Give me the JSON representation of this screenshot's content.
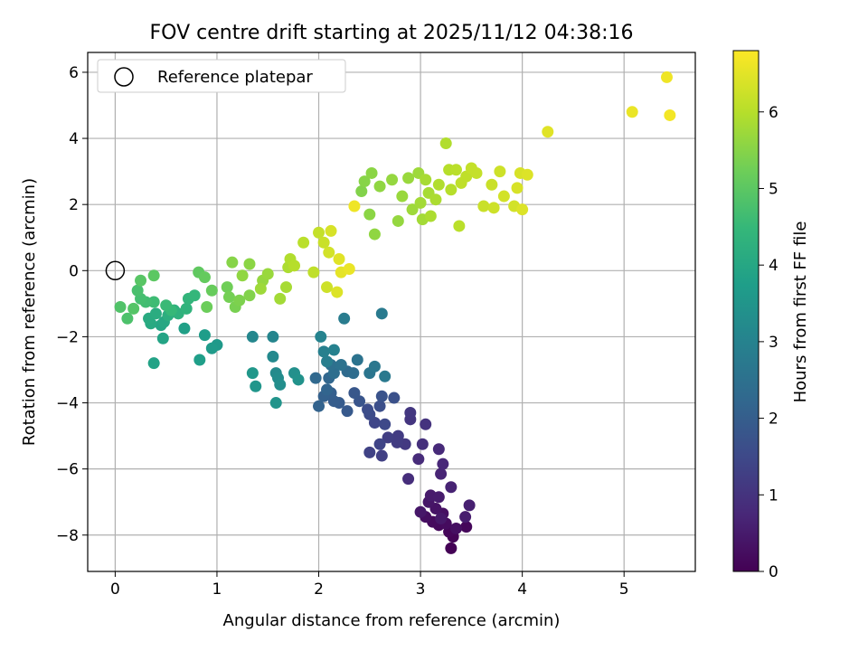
{
  "chart_data": {
    "type": "scatter",
    "title": "FOV centre drift starting at 2025/11/12 04:38:16",
    "xlabel": "Angular distance from reference (arcmin)",
    "ylabel": "Rotation from reference (arcmin)",
    "xlim": [
      -0.27,
      5.7
    ],
    "ylim": [
      -9.1,
      6.6
    ],
    "x_ticks": [
      0,
      1,
      2,
      3,
      4,
      5
    ],
    "y_ticks": [
      -8,
      -6,
      -4,
      -2,
      0,
      2,
      4,
      6
    ],
    "grid": true,
    "legend": {
      "placement": "top-left",
      "entries": [
        "Reference platepar"
      ]
    },
    "reference_point": {
      "x": 0,
      "y": 0
    },
    "colorbar": {
      "label": "Hours from first FF file",
      "range": [
        0,
        6.8
      ],
      "ticks": [
        0,
        1,
        2,
        3,
        4,
        5,
        6
      ],
      "colormap": "viridis",
      "stops": [
        "#440154",
        "#482878",
        "#3e4989",
        "#31688e",
        "#26828e",
        "#1f9e89",
        "#35b779",
        "#6ece58",
        "#b5de2b",
        "#fde725"
      ]
    },
    "points": [
      [
        3.3,
        -8.4,
        0.02
      ],
      [
        3.32,
        -8.05,
        0.05
      ],
      [
        3.28,
        -7.9,
        0.1
      ],
      [
        3.45,
        -7.75,
        0.12
      ],
      [
        3.18,
        -7.7,
        0.15
      ],
      [
        3.12,
        -7.6,
        0.18
      ],
      [
        3.25,
        -7.65,
        0.2
      ],
      [
        3.05,
        -7.45,
        0.25
      ],
      [
        3.35,
        -7.8,
        0.28
      ],
      [
        3.22,
        -7.35,
        0.3
      ],
      [
        3.15,
        -7.2,
        0.35
      ],
      [
        3.08,
        -7.0,
        0.4
      ],
      [
        3.0,
        -7.3,
        0.42
      ],
      [
        3.2,
        -7.5,
        0.45
      ],
      [
        3.1,
        -6.8,
        0.5
      ],
      [
        3.18,
        -6.85,
        0.52
      ],
      [
        3.44,
        -7.45,
        0.55
      ],
      [
        3.48,
        -7.1,
        0.6
      ],
      [
        3.3,
        -6.55,
        0.65
      ],
      [
        3.2,
        -6.15,
        0.7
      ],
      [
        3.22,
        -5.85,
        0.75
      ],
      [
        3.18,
        -5.4,
        0.8
      ],
      [
        2.98,
        -5.7,
        0.85
      ],
      [
        2.88,
        -6.3,
        0.9
      ],
      [
        3.02,
        -5.25,
        0.95
      ],
      [
        3.05,
        -4.65,
        1.0
      ],
      [
        2.9,
        -4.5,
        1.05
      ],
      [
        2.9,
        -4.3,
        1.1
      ],
      [
        2.85,
        -5.25,
        1.15
      ],
      [
        2.78,
        -5.0,
        1.2
      ],
      [
        2.77,
        -5.2,
        1.22
      ],
      [
        2.68,
        -5.05,
        1.25
      ],
      [
        2.62,
        -5.6,
        1.3
      ],
      [
        2.5,
        -5.5,
        1.35
      ],
      [
        2.6,
        -5.25,
        1.4
      ],
      [
        2.55,
        -4.6,
        1.45
      ],
      [
        2.65,
        -4.65,
        1.5
      ],
      [
        2.5,
        -4.35,
        1.55
      ],
      [
        2.48,
        -4.2,
        1.6
      ],
      [
        2.6,
        -4.1,
        1.65
      ],
      [
        2.74,
        -3.85,
        1.7
      ],
      [
        2.62,
        -3.8,
        1.75
      ],
      [
        2.4,
        -3.95,
        1.8
      ],
      [
        2.35,
        -3.7,
        1.85
      ],
      [
        2.28,
        -4.25,
        1.9
      ],
      [
        2.2,
        -4.0,
        1.95
      ],
      [
        2.15,
        -3.95,
        2.0
      ],
      [
        2.12,
        -3.7,
        2.05
      ],
      [
        2.05,
        -3.8,
        2.1
      ],
      [
        2.0,
        -4.1,
        2.15
      ],
      [
        2.08,
        -3.6,
        2.2
      ],
      [
        2.1,
        -3.25,
        2.25
      ],
      [
        1.97,
        -3.25,
        2.3
      ],
      [
        2.28,
        -3.05,
        2.35
      ],
      [
        2.34,
        -3.1,
        2.4
      ],
      [
        2.15,
        -3.1,
        2.45
      ],
      [
        2.12,
        -2.85,
        2.5
      ],
      [
        2.22,
        -2.85,
        2.55
      ],
      [
        2.38,
        -2.7,
        2.6
      ],
      [
        2.5,
        -3.1,
        2.65
      ],
      [
        2.55,
        -2.9,
        2.7
      ],
      [
        2.65,
        -3.2,
        2.75
      ],
      [
        2.62,
        -1.3,
        2.8
      ],
      [
        2.25,
        -1.45,
        2.85
      ],
      [
        2.08,
        -2.75,
        2.9
      ],
      [
        2.05,
        -2.45,
        2.95
      ],
      [
        2.15,
        -2.4,
        3.0
      ],
      [
        2.02,
        -2.0,
        3.05
      ],
      [
        1.55,
        -2.0,
        3.1
      ],
      [
        1.35,
        -2.0,
        3.15
      ],
      [
        1.55,
        -2.6,
        3.2
      ],
      [
        1.58,
        -3.1,
        3.25
      ],
      [
        1.6,
        -3.25,
        3.3
      ],
      [
        1.62,
        -3.45,
        3.35
      ],
      [
        1.76,
        -3.1,
        3.4
      ],
      [
        1.8,
        -3.3,
        3.45
      ],
      [
        1.58,
        -4.0,
        3.5
      ],
      [
        1.38,
        -3.5,
        3.55
      ],
      [
        1.35,
        -3.1,
        3.6
      ],
      [
        1.0,
        -2.25,
        3.65
      ],
      [
        0.95,
        -2.35,
        3.7
      ],
      [
        0.88,
        -1.95,
        3.75
      ],
      [
        0.83,
        -2.7,
        3.8
      ],
      [
        0.68,
        -1.75,
        3.85
      ],
      [
        0.38,
        -2.8,
        3.9
      ],
      [
        0.47,
        -2.05,
        3.95
      ],
      [
        0.45,
        -1.65,
        4.0
      ],
      [
        0.48,
        -1.55,
        4.05
      ],
      [
        0.35,
        -1.6,
        4.1
      ],
      [
        0.33,
        -1.45,
        4.15
      ],
      [
        0.4,
        -1.3,
        4.2
      ],
      [
        0.52,
        -1.35,
        4.25
      ],
      [
        0.58,
        -1.2,
        4.3
      ],
      [
        0.62,
        -1.3,
        4.35
      ],
      [
        0.7,
        -1.15,
        4.4
      ],
      [
        0.72,
        -0.85,
        4.45
      ],
      [
        0.78,
        -0.75,
        4.5
      ],
      [
        0.55,
        -1.2,
        4.55
      ],
      [
        0.5,
        -1.05,
        4.6
      ],
      [
        0.38,
        -0.95,
        4.65
      ],
      [
        0.3,
        -0.95,
        4.7
      ],
      [
        0.25,
        -0.85,
        4.75
      ],
      [
        0.22,
        -0.6,
        4.8
      ],
      [
        0.12,
        -1.45,
        4.85
      ],
      [
        0.05,
        -1.1,
        4.9
      ],
      [
        0.18,
        -1.15,
        4.95
      ],
      [
        0.25,
        -0.3,
        5.0
      ],
      [
        0.38,
        -0.15,
        5.05
      ],
      [
        0.82,
        -0.05,
        5.1
      ],
      [
        0.88,
        -0.2,
        5.15
      ],
      [
        0.95,
        -0.6,
        5.2
      ],
      [
        0.9,
        -1.1,
        5.25
      ],
      [
        1.1,
        -0.5,
        5.3
      ],
      [
        1.12,
        -0.8,
        5.35
      ],
      [
        1.18,
        -1.1,
        5.4
      ],
      [
        1.22,
        -0.9,
        5.45
      ],
      [
        1.32,
        -0.75,
        5.5
      ],
      [
        1.15,
        0.25,
        5.55
      ],
      [
        1.32,
        0.2,
        5.6
      ],
      [
        1.25,
        -0.15,
        5.65
      ],
      [
        1.45,
        -0.3,
        5.7
      ],
      [
        1.5,
        -0.1,
        5.75
      ],
      [
        1.43,
        -0.55,
        5.8
      ],
      [
        1.62,
        -0.85,
        5.85
      ],
      [
        1.68,
        -0.5,
        5.9
      ],
      [
        1.7,
        0.1,
        5.95
      ],
      [
        1.72,
        0.35,
        6.0
      ],
      [
        1.76,
        0.15,
        6.05
      ],
      [
        1.85,
        0.85,
        6.1
      ],
      [
        1.95,
        -0.05,
        6.15
      ],
      [
        2.0,
        1.15,
        6.2
      ],
      [
        2.05,
        0.85,
        6.25
      ],
      [
        2.08,
        -0.5,
        6.3
      ],
      [
        2.1,
        0.55,
        6.35
      ],
      [
        2.12,
        1.2,
        6.4
      ],
      [
        2.18,
        -0.65,
        6.45
      ],
      [
        2.2,
        0.35,
        6.5
      ],
      [
        2.22,
        -0.05,
        6.55
      ],
      [
        2.3,
        0.05,
        6.6
      ],
      [
        2.35,
        1.95,
        6.65
      ]
    ],
    "points_b": [
      [
        2.42,
        2.4,
        5.5
      ],
      [
        2.45,
        2.7,
        5.55
      ],
      [
        2.5,
        1.7,
        5.6
      ],
      [
        2.52,
        2.95,
        5.6
      ],
      [
        2.55,
        1.1,
        5.65
      ],
      [
        2.6,
        2.55,
        5.65
      ],
      [
        2.72,
        2.75,
        5.7
      ],
      [
        2.78,
        1.5,
        5.7
      ],
      [
        2.82,
        2.25,
        5.75
      ],
      [
        2.88,
        2.8,
        5.75
      ],
      [
        2.92,
        1.85,
        5.8
      ],
      [
        2.98,
        2.95,
        5.8
      ],
      [
        3.0,
        2.05,
        5.85
      ],
      [
        3.02,
        1.55,
        5.85
      ],
      [
        3.05,
        2.75,
        5.9
      ],
      [
        3.08,
        2.35,
        5.9
      ],
      [
        3.1,
        1.65,
        5.95
      ],
      [
        3.15,
        2.15,
        5.95
      ],
      [
        3.18,
        2.6,
        6.0
      ],
      [
        3.25,
        3.85,
        6.0
      ],
      [
        3.28,
        3.05,
        6.05
      ],
      [
        3.3,
        2.45,
        6.05
      ],
      [
        3.35,
        3.05,
        6.1
      ],
      [
        3.38,
        1.35,
        6.1
      ],
      [
        3.4,
        2.65,
        6.15
      ],
      [
        3.45,
        2.85,
        6.15
      ],
      [
        3.5,
        3.1,
        6.2
      ],
      [
        3.55,
        2.95,
        6.2
      ],
      [
        3.62,
        1.95,
        6.25
      ],
      [
        3.7,
        2.6,
        6.25
      ],
      [
        3.72,
        1.9,
        6.3
      ],
      [
        3.78,
        3.0,
        6.3
      ],
      [
        3.82,
        2.25,
        6.35
      ],
      [
        3.92,
        1.95,
        6.35
      ],
      [
        3.95,
        2.5,
        6.4
      ],
      [
        3.98,
        2.95,
        6.4
      ],
      [
        4.0,
        1.85,
        6.45
      ],
      [
        4.05,
        2.9,
        6.45
      ],
      [
        4.25,
        4.2,
        6.5
      ],
      [
        5.08,
        4.8,
        6.6
      ],
      [
        5.42,
        5.85,
        6.65
      ],
      [
        5.45,
        4.7,
        6.7
      ]
    ]
  }
}
